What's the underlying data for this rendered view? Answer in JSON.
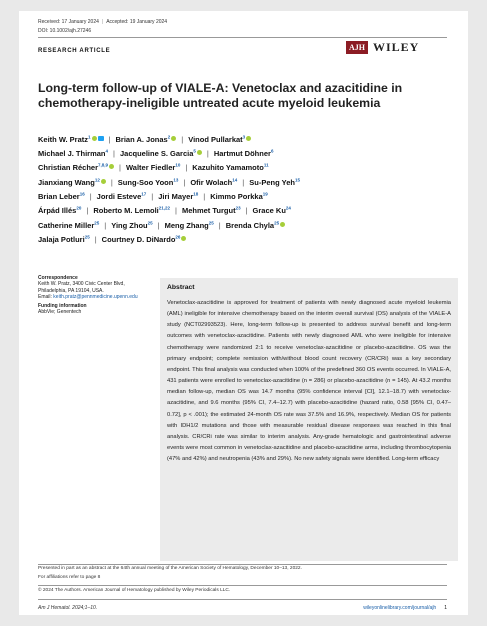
{
  "header": {
    "received": "Received: 17 January 2024",
    "accepted": "Accepted: 19 January 2024",
    "doi": "DOI: 10.1002/ajh.27246",
    "article_type": "RESEARCH ARTICLE",
    "journal_logo": "AJH",
    "publisher": "WILEY"
  },
  "title": "Long-term follow-up of VIALE-A: Venetoclax and azacitidine in chemotherapy-ineligible untreated acute myeloid leukemia",
  "authors": [
    {
      "name": "Keith W. Pratz",
      "sup": "1",
      "orcid": true,
      "twitter": true
    },
    {
      "name": "Brian A. Jonas",
      "sup": "2",
      "orcid": true
    },
    {
      "name": "Vinod Pullarkat",
      "sup": "3",
      "orcid": true
    },
    {
      "name": "Michael J. Thirman",
      "sup": "4"
    },
    {
      "name": "Jacqueline S. Garcia",
      "sup": "5",
      "orcid": true
    },
    {
      "name": "Hartmut Döhner",
      "sup": "6"
    },
    {
      "name": "Christian Récher",
      "sup": "7,8,9",
      "orcid": true
    },
    {
      "name": "Walter Fiedler",
      "sup": "10"
    },
    {
      "name": "Kazuhito Yamamoto",
      "sup": "11"
    },
    {
      "name": "Jianxiang Wang",
      "sup": "12",
      "orcid": true
    },
    {
      "name": "Sung-Soo Yoon",
      "sup": "13"
    },
    {
      "name": "Ofir Wolach",
      "sup": "14"
    },
    {
      "name": "Su-Peng Yeh",
      "sup": "15"
    },
    {
      "name": "Brian Leber",
      "sup": "16"
    },
    {
      "name": "Jordi Esteve",
      "sup": "17"
    },
    {
      "name": "Jiri Mayer",
      "sup": "18"
    },
    {
      "name": "Kimmo Porkka",
      "sup": "19"
    },
    {
      "name": "Árpád Illés",
      "sup": "20"
    },
    {
      "name": "Roberto M. Lemoli",
      "sup": "21,22"
    },
    {
      "name": "Mehmet Turgut",
      "sup": "23"
    },
    {
      "name": "Grace Ku",
      "sup": "24"
    },
    {
      "name": "Catherine Miller",
      "sup": "25"
    },
    {
      "name": "Ying Zhou",
      "sup": "25"
    },
    {
      "name": "Meng Zhang",
      "sup": "25"
    },
    {
      "name": "Brenda Chyla",
      "sup": "25",
      "orcid": true
    },
    {
      "name": "Jalaja Potluri",
      "sup": "25"
    },
    {
      "name": "Courtney D. DiNardo",
      "sup": "26",
      "orcid": true
    }
  ],
  "author_rows": [
    [
      0,
      1,
      2
    ],
    [
      3,
      4,
      5
    ],
    [
      6,
      7,
      8
    ],
    [
      9,
      10,
      11,
      12
    ],
    [
      13,
      14,
      15,
      16
    ],
    [
      17,
      18,
      19,
      20
    ],
    [
      21,
      22,
      23,
      24
    ],
    [
      25,
      26
    ]
  ],
  "correspondence": {
    "heading": "Correspondence",
    "lines": [
      "Keith W. Pratz, 3400 Civic Center Blvd,",
      "Philadelphia, PA 19104, USA."
    ],
    "email_label": "Email:",
    "email": "keith.pratz@pennmedicine.upenn.edu"
  },
  "funding": {
    "heading": "Funding information",
    "text": "AbbVie; Genentech"
  },
  "abstract": {
    "heading": "Abstract",
    "text": "Venetoclax-azacitidine is approved for treatment of patients with newly diagnosed acute myeloid leukemia (AML) ineligible for intensive chemotherapy based on the interim overall survival (OS) analysis of the VIALE-A study (NCT02993523). Here, long-term follow-up is presented to address survival benefit and long-term outcomes with venetoclax-azacitidine. Patients with newly diagnosed AML who were ineligible for intensive chemotherapy were randomized 2:1 to receive venetoclax-azacitidine or placebo-azacitidine. OS was the primary endpoint; complete remission with/without blood count recovery (CR/CRi) was a key secondary endpoint. This final analysis was conducted when 100% of the predefined 360 OS events occurred. In VIALE-A, 431 patients were enrolled to venetoclax-azacitidine (n = 286) or placebo-azacitidine (n = 145). At 43.2 months median follow-up, median OS was 14.7 months (95% confidence interval [CI], 12.1–18.7) with venetoclax-azacitidine, and 9.6 months (95% CI, 7.4–12.7) with placebo-azacitidine (hazard ratio, 0.58 [95% CI, 0.47–0.72], p < .001); the estimated 24-month OS rate was 37.5% and 16.9%, respectively. Median OS for patients with IDH1/2 mutations and those with measurable residual disease responses was reached in this final analysis. CR/CRi rate was similar to interim analysis. Any-grade hematologic and gastrointestinal adverse events were most common in venetoclax-azacitidine and placebo-azacitidine arms, including thrombocytopenia (47% and 42%) and neutropenia (43% and 29%). No new safety signals were identified. Long-term efficacy"
  },
  "footnotes": {
    "presented": "Presented in part as an abstract at the 64th annual meeting of the American Society of Hematology, December 10–13, 2022.",
    "affiliations": "For affiliations refer to page 8",
    "copyright": "© 2024 The Authors. American Journal of Hematology published by Wiley Periodicals LLC."
  },
  "footer": {
    "citation": "Am J Hematol. 2024;1–10.",
    "url": "wileyonlinelibrary.com/journal/ajh",
    "page": "1"
  }
}
